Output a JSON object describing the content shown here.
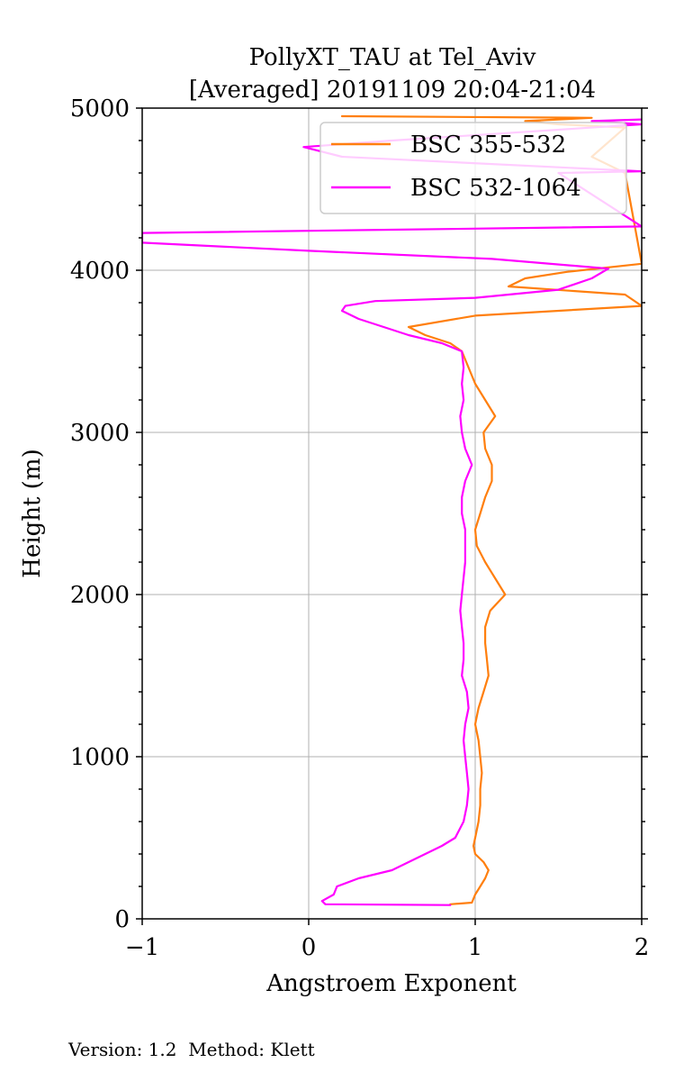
{
  "chart_data": {
    "type": "line",
    "title": [
      "PollyXT_TAU at Tel_Aviv",
      "[Averaged] 20191109 20:04-21:04"
    ],
    "xlabel": "Angstroem Exponent",
    "ylabel": "Height (m)",
    "xlim": [
      -1,
      2
    ],
    "ylim": [
      0,
      5000
    ],
    "xticks": [
      -1,
      0,
      1,
      2
    ],
    "xtick_labels": [
      "−1",
      "0",
      "1",
      "2"
    ],
    "yticks": [
      0,
      1000,
      2000,
      3000,
      4000,
      5000
    ],
    "ytick_labels": [
      "0",
      "1000",
      "2000",
      "3000",
      "4000",
      "5000"
    ],
    "grid": true,
    "legend_position": "top-right",
    "series": [
      {
        "name": "BSC 355-532",
        "color": "#ff7f0e",
        "points": [
          [
            0.85,
            90
          ],
          [
            0.98,
            100
          ],
          [
            1.0,
            150
          ],
          [
            1.03,
            200
          ],
          [
            1.06,
            250
          ],
          [
            1.08,
            300
          ],
          [
            1.05,
            350
          ],
          [
            1.0,
            400
          ],
          [
            0.99,
            450
          ],
          [
            1.0,
            500
          ],
          [
            1.02,
            600
          ],
          [
            1.03,
            700
          ],
          [
            1.03,
            800
          ],
          [
            1.04,
            900
          ],
          [
            1.03,
            1000
          ],
          [
            1.02,
            1100
          ],
          [
            1.0,
            1200
          ],
          [
            1.02,
            1300
          ],
          [
            1.05,
            1400
          ],
          [
            1.08,
            1500
          ],
          [
            1.07,
            1600
          ],
          [
            1.06,
            1700
          ],
          [
            1.06,
            1800
          ],
          [
            1.09,
            1900
          ],
          [
            1.18,
            2000
          ],
          [
            1.12,
            2100
          ],
          [
            1.06,
            2200
          ],
          [
            1.01,
            2300
          ],
          [
            1.0,
            2400
          ],
          [
            1.03,
            2500
          ],
          [
            1.06,
            2600
          ],
          [
            1.1,
            2700
          ],
          [
            1.1,
            2800
          ],
          [
            1.06,
            2900
          ],
          [
            1.05,
            3000
          ],
          [
            1.12,
            3100
          ],
          [
            1.06,
            3200
          ],
          [
            1.0,
            3300
          ],
          [
            0.96,
            3400
          ],
          [
            0.92,
            3500
          ],
          [
            0.85,
            3550
          ],
          [
            0.7,
            3600
          ],
          [
            0.6,
            3650
          ],
          [
            1.0,
            3720
          ],
          [
            2.0,
            3780
          ],
          [
            1.9,
            3850
          ],
          [
            1.2,
            3900
          ],
          [
            1.3,
            3950
          ],
          [
            1.55,
            3990
          ],
          [
            2.0,
            4040
          ],
          [
            1.9,
            4600
          ],
          [
            1.8,
            4650
          ],
          [
            1.7,
            4700
          ],
          [
            1.9,
            4880
          ],
          [
            1.5,
            4900
          ],
          [
            1.3,
            4920
          ],
          [
            1.7,
            4940
          ],
          [
            0.2,
            4950
          ]
        ]
      },
      {
        "name": "BSC 532-1064",
        "color": "#ff00ff",
        "points": [
          [
            0.85,
            85
          ],
          [
            0.1,
            90
          ],
          [
            0.08,
            110
          ],
          [
            0.15,
            150
          ],
          [
            0.17,
            200
          ],
          [
            0.3,
            250
          ],
          [
            0.5,
            300
          ],
          [
            0.6,
            350
          ],
          [
            0.7,
            400
          ],
          [
            0.8,
            450
          ],
          [
            0.88,
            500
          ],
          [
            0.93,
            600
          ],
          [
            0.95,
            700
          ],
          [
            0.96,
            800
          ],
          [
            0.95,
            900
          ],
          [
            0.94,
            1000
          ],
          [
            0.93,
            1100
          ],
          [
            0.94,
            1200
          ],
          [
            0.96,
            1300
          ],
          [
            0.95,
            1400
          ],
          [
            0.92,
            1500
          ],
          [
            0.93,
            1600
          ],
          [
            0.93,
            1700
          ],
          [
            0.92,
            1800
          ],
          [
            0.91,
            1900
          ],
          [
            0.92,
            2000
          ],
          [
            0.94,
            2200
          ],
          [
            0.94,
            2400
          ],
          [
            0.92,
            2500
          ],
          [
            0.92,
            2600
          ],
          [
            0.94,
            2700
          ],
          [
            0.98,
            2800
          ],
          [
            0.94,
            2900
          ],
          [
            0.92,
            3000
          ],
          [
            0.91,
            3100
          ],
          [
            0.93,
            3200
          ],
          [
            0.92,
            3300
          ],
          [
            0.93,
            3400
          ],
          [
            0.92,
            3500
          ],
          [
            0.8,
            3550
          ],
          [
            0.6,
            3600
          ],
          [
            0.45,
            3650
          ],
          [
            0.3,
            3700
          ],
          [
            0.2,
            3750
          ],
          [
            0.22,
            3780
          ],
          [
            0.4,
            3810
          ],
          [
            1.0,
            3830
          ],
          [
            1.5,
            3880
          ],
          [
            1.7,
            3950
          ],
          [
            1.8,
            4010
          ],
          [
            1.1,
            4070
          ],
          [
            0.0,
            4120
          ],
          [
            -1.0,
            4170
          ],
          [
            -1.0,
            4230
          ],
          [
            0.5,
            4250
          ],
          [
            2.0,
            4270
          ],
          [
            1.5,
            4600
          ],
          [
            2.0,
            4610
          ],
          [
            0.2,
            4700
          ],
          [
            -0.03,
            4760
          ],
          [
            0.5,
            4800
          ],
          [
            2.0,
            4900
          ],
          [
            1.7,
            4920
          ],
          [
            2.0,
            4930
          ]
        ]
      }
    ]
  },
  "footer": {
    "text": "Version: 1.2  Method: Klett"
  }
}
